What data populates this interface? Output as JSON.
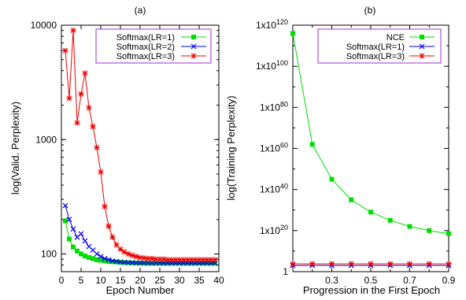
{
  "chart_data": [
    {
      "panel_label": "(a)",
      "type": "line",
      "xlabel": "Epoch Number",
      "ylabel": "log(Valid. Perplexity)",
      "xlim": [
        0,
        40
      ],
      "ylim": [
        70,
        10000
      ],
      "yscale": "log",
      "xticks": [
        0,
        5,
        10,
        15,
        20,
        25,
        30,
        35,
        40
      ],
      "yticks": [
        {
          "v": 100,
          "label": "100"
        },
        {
          "v": 1000,
          "label": "1000"
        },
        {
          "v": 10000,
          "label": "10000"
        }
      ],
      "legend": {
        "position": "top-right",
        "border_color": "#9c2fd6"
      },
      "series": [
        {
          "name": "Softmax(LR=1)",
          "color": "#00dd00",
          "marker": "square",
          "x": [
            1,
            2,
            3,
            4,
            5,
            6,
            7,
            8,
            9,
            10,
            11,
            12,
            13,
            14,
            15,
            16,
            17,
            18,
            19,
            20,
            21,
            22,
            23,
            24,
            25,
            26,
            27,
            28,
            29,
            30,
            31,
            32,
            33,
            34,
            35,
            36,
            37,
            38,
            39
          ],
          "y": [
            195,
            135,
            115,
            106,
            100,
            96,
            93,
            91,
            89,
            88,
            87,
            86,
            85.5,
            85,
            84.5,
            84,
            83.8,
            83.6,
            83.4,
            83.3,
            83.2,
            83.1,
            83,
            83,
            83,
            83,
            83,
            83,
            83,
            83,
            83,
            83,
            83,
            83,
            83,
            83,
            83,
            83,
            83
          ]
        },
        {
          "name": "Softmax(LR=2)",
          "color": "#0000ee",
          "marker": "x",
          "x": [
            1,
            2,
            3,
            4,
            5,
            6,
            7,
            8,
            9,
            10,
            11,
            12,
            13,
            14,
            15,
            16,
            17,
            18,
            19,
            20,
            21,
            22,
            23,
            24,
            25,
            26,
            27,
            28,
            29,
            30,
            31,
            32,
            33,
            34,
            35,
            36,
            37,
            38,
            39
          ],
          "y": [
            265,
            200,
            165,
            140,
            150,
            130,
            116,
            108,
            100,
            95,
            91,
            89,
            87,
            86,
            85,
            84.5,
            84,
            83.8,
            83.5,
            83.3,
            83.2,
            83,
            83,
            83,
            83,
            83,
            83,
            83,
            83,
            83,
            83,
            83,
            83,
            83,
            83,
            83,
            83,
            83,
            83
          ]
        },
        {
          "name": "Softmax(LR=3)",
          "color": "#ee0000",
          "marker": "star",
          "x": [
            1,
            2,
            3,
            4,
            5,
            6,
            7,
            8,
            9,
            10,
            11,
            12,
            13,
            14,
            15,
            16,
            17,
            18,
            19,
            20,
            21,
            22,
            23,
            24,
            25,
            26,
            27,
            28,
            29,
            30,
            31,
            32,
            33,
            34,
            35,
            36,
            37,
            38,
            39
          ],
          "y": [
            6000,
            2300,
            9000,
            1400,
            2500,
            3800,
            1900,
            1300,
            850,
            520,
            260,
            175,
            140,
            120,
            110,
            104,
            100,
            97,
            95,
            93,
            92,
            91,
            91,
            90,
            90,
            90,
            89,
            89,
            89,
            89,
            89,
            89,
            89,
            89,
            89,
            89,
            89,
            89,
            89
          ]
        }
      ]
    },
    {
      "panel_label": "(b)",
      "type": "line",
      "xlabel": "Progression in the First Epoch",
      "ylabel": "log(Training Perplexity)",
      "xlim": [
        0.1,
        0.9
      ],
      "ylim_log10": [
        0,
        120
      ],
      "yscale": "log",
      "xticks": [
        0.3,
        0.5,
        0.7,
        0.9
      ],
      "xtick_labels": [
        "0.3",
        "0.5",
        "0.7",
        "0.9"
      ],
      "yticks": [
        {
          "exp": 0,
          "label": "1"
        },
        {
          "exp": 20,
          "label": "1x10",
          "sup": "20"
        },
        {
          "exp": 40,
          "label": "1x10",
          "sup": "40"
        },
        {
          "exp": 60,
          "label": "1x10",
          "sup": "60"
        },
        {
          "exp": 80,
          "label": "1x10",
          "sup": "80"
        },
        {
          "exp": 100,
          "label": "1x10",
          "sup": "100"
        },
        {
          "exp": 120,
          "label": "1x10",
          "sup": "120"
        }
      ],
      "legend": {
        "position": "top-right",
        "border_color": "#9c2fd6"
      },
      "series": [
        {
          "name": "NCE",
          "color": "#00dd00",
          "marker": "square",
          "x": [
            0.1,
            0.2,
            0.3,
            0.4,
            0.5,
            0.6,
            0.7,
            0.8,
            0.9
          ],
          "y_log10": [
            116,
            62,
            45,
            35,
            29,
            25,
            22,
            20,
            18.5
          ]
        },
        {
          "name": "Softmax(LR=1)",
          "color": "#0000ee",
          "marker": "x",
          "x": [
            0.1,
            0.2,
            0.3,
            0.4,
            0.5,
            0.6,
            0.7,
            0.8,
            0.9
          ],
          "y_log10": [
            3,
            3,
            3,
            3,
            3,
            3,
            3,
            3,
            3
          ]
        },
        {
          "name": "Softmax(LR=3)",
          "color": "#ee0000",
          "marker": "star",
          "x": [
            0.1,
            0.2,
            0.3,
            0.4,
            0.5,
            0.6,
            0.7,
            0.8,
            0.9
          ],
          "y_log10": [
            3.8,
            3.8,
            3.8,
            3.8,
            3.8,
            3.8,
            3.8,
            3.8,
            3.8
          ]
        }
      ]
    }
  ]
}
